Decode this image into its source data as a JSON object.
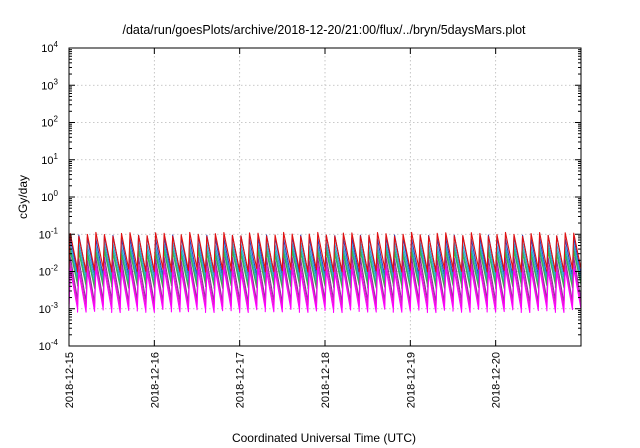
{
  "chart_data": {
    "type": "line",
    "title": "/data/run/goesPlots/archive/2018-12-20/21:00/flux/../bryn/5daysMars.plot",
    "xlabel": "Coordinated Universal Time (UTC)",
    "ylabel": "cGy/day",
    "y_scale": "log",
    "ylim_exponents": [
      -4,
      4
    ],
    "y_tick_exponents": [
      "-4",
      "-3",
      "-2",
      "-1",
      "0",
      "1",
      "2",
      "3",
      "4"
    ],
    "y_tick_base": "10",
    "x_range_days": [
      0,
      6
    ],
    "x_tick_labels": [
      "2018-12-15",
      "2018-12-16",
      "2018-12-17",
      "2018-12-18",
      "2018-12-19",
      "2018-12-20"
    ],
    "grid": true,
    "cycles_per_day": 10,
    "series": [
      {
        "color": "#2f3fbf",
        "peak": 0.085,
        "trough": 0.0085
      },
      {
        "color": "#2fa0d8",
        "peak": 0.055,
        "trough": 0.0065
      },
      {
        "color": "#1fb3a0",
        "peak": 0.04,
        "trough": 0.0048
      },
      {
        "color": "#3fae4a",
        "peak": 0.032,
        "trough": 0.004
      },
      {
        "color": "#8a2aa0",
        "peak": 0.022,
        "trough": 0.0016
      },
      {
        "color": "#d82ab8",
        "peak": 0.015,
        "trough": 0.0012
      },
      {
        "color": "#ff00ff",
        "peak": 0.011,
        "trough": 0.0009
      },
      {
        "color": "#e01010",
        "peak": 0.1,
        "trough": 0.011
      }
    ]
  }
}
